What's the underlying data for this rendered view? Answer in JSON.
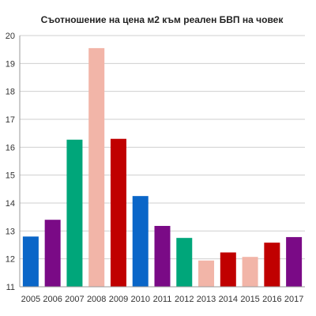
{
  "chart_data": {
    "type": "bar",
    "title": "Съотношение на цена м2 към реален БВП на човек",
    "xlabel": "",
    "ylabel": "",
    "categories": [
      "2005",
      "2006",
      "2007",
      "2008",
      "2009",
      "2010",
      "2011",
      "2012",
      "2013",
      "2014",
      "2015",
      "2016",
      "2017"
    ],
    "values": [
      12.8,
      13.4,
      16.27,
      19.55,
      16.3,
      14.25,
      13.18,
      12.75,
      11.94,
      12.23,
      12.07,
      12.58,
      12.78
    ],
    "colors": [
      "#0a66c8",
      "#7a0a86",
      "#00a67a",
      "#f2b5a8",
      "#c00000",
      "#0a66c8",
      "#7a0a86",
      "#00a67a",
      "#f2b5a8",
      "#c00000",
      "#f2b5a8",
      "#c00000",
      "#7a0a86"
    ],
    "ylim": [
      11,
      20
    ],
    "yticks": [
      "11",
      "12",
      "13",
      "14",
      "15",
      "16",
      "17",
      "18",
      "19",
      "20"
    ],
    "grid": true,
    "legend": "none"
  }
}
